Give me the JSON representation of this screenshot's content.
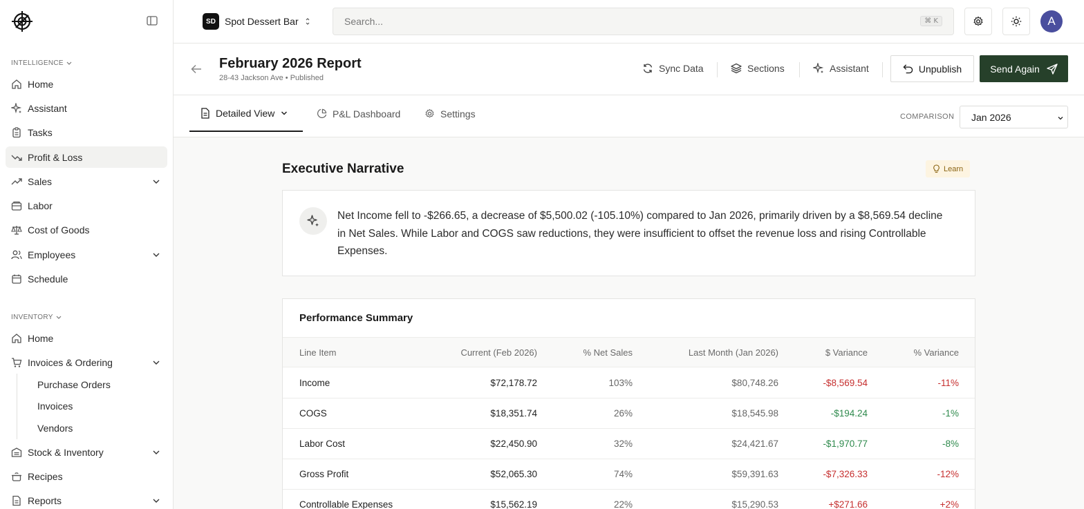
{
  "sidebar": {
    "sections": [
      {
        "label": "INTELLIGENCE"
      },
      {
        "label": "INVENTORY"
      }
    ],
    "intelligence_items": [
      {
        "label": "Home"
      },
      {
        "label": "Assistant"
      },
      {
        "label": "Tasks"
      },
      {
        "label": "Profit & Loss",
        "active": true
      },
      {
        "label": "Sales"
      },
      {
        "label": "Labor"
      },
      {
        "label": "Cost of Goods"
      },
      {
        "label": "Employees"
      },
      {
        "label": "Schedule"
      }
    ],
    "inventory_items": [
      {
        "label": "Home"
      },
      {
        "label": "Invoices & Ordering"
      },
      {
        "label": "Stock & Inventory"
      },
      {
        "label": "Recipes"
      },
      {
        "label": "Reports"
      }
    ],
    "invoices_subitems": [
      {
        "label": "Purchase Orders"
      },
      {
        "label": "Invoices"
      },
      {
        "label": "Vendors"
      }
    ]
  },
  "topbar": {
    "store_badge": "SD",
    "store_name": "Spot Dessert Bar",
    "search_placeholder": "Search...",
    "search_shortcut": "⌘ K",
    "avatar_initial": "A"
  },
  "report": {
    "title": "February 2026 Report",
    "subtitle": "28-43 Jackson Ave • Published",
    "actions": {
      "sync": "Sync Data",
      "sections": "Sections",
      "assistant": "Assistant",
      "unpublish": "Unpublish",
      "send_again": "Send Again"
    }
  },
  "tabs": {
    "detailed_view": "Detailed View",
    "pl_dashboard": "P&L Dashboard",
    "settings": "Settings",
    "comparison_label": "COMPARISON",
    "comparison_value": "Jan 2026"
  },
  "narrative": {
    "title": "Executive Narrative",
    "learn": "Learn",
    "text": "Net Income fell to -$266.65, a decrease of $5,500.02 (-105.10%) compared to Jan 2026, primarily driven by a $8,569.54 decline in Net Sales. While Labor and COGS saw reductions, they were insufficient to offset the revenue loss and rising Controllable Expenses."
  },
  "performance": {
    "title": "Performance Summary",
    "columns": [
      "Line Item",
      "Current (Feb 2026)",
      "% Net Sales",
      "Last Month (Jan 2026)",
      "$ Variance",
      "% Variance"
    ],
    "rows": [
      {
        "item": "Income",
        "current": "$72,178.72",
        "pct": "103%",
        "last": "$80,748.26",
        "var": "-$8,569.54",
        "pvar": "-11%",
        "tone": "neg"
      },
      {
        "item": "COGS",
        "current": "$18,351.74",
        "pct": "26%",
        "last": "$18,545.98",
        "var": "-$194.24",
        "pvar": "-1%",
        "tone": "pos"
      },
      {
        "item": "Labor Cost",
        "current": "$22,450.90",
        "pct": "32%",
        "last": "$24,421.67",
        "var": "-$1,970.77",
        "pvar": "-8%",
        "tone": "pos"
      },
      {
        "item": "Gross Profit",
        "current": "$52,065.30",
        "pct": "74%",
        "last": "$59,391.63",
        "var": "-$7,326.33",
        "pvar": "-12%",
        "tone": "neg"
      },
      {
        "item": "Controllable Expenses",
        "current": "$15,562.19",
        "pct": "22%",
        "last": "$15,290.53",
        "var": "+$271.66",
        "pvar": "+2%",
        "tone": "neg"
      }
    ]
  },
  "colors": {
    "accent_dark_green": "#26402a",
    "negative": "#c62f2f",
    "positive": "#2f8a4d",
    "avatar": "#4a4e9e"
  }
}
